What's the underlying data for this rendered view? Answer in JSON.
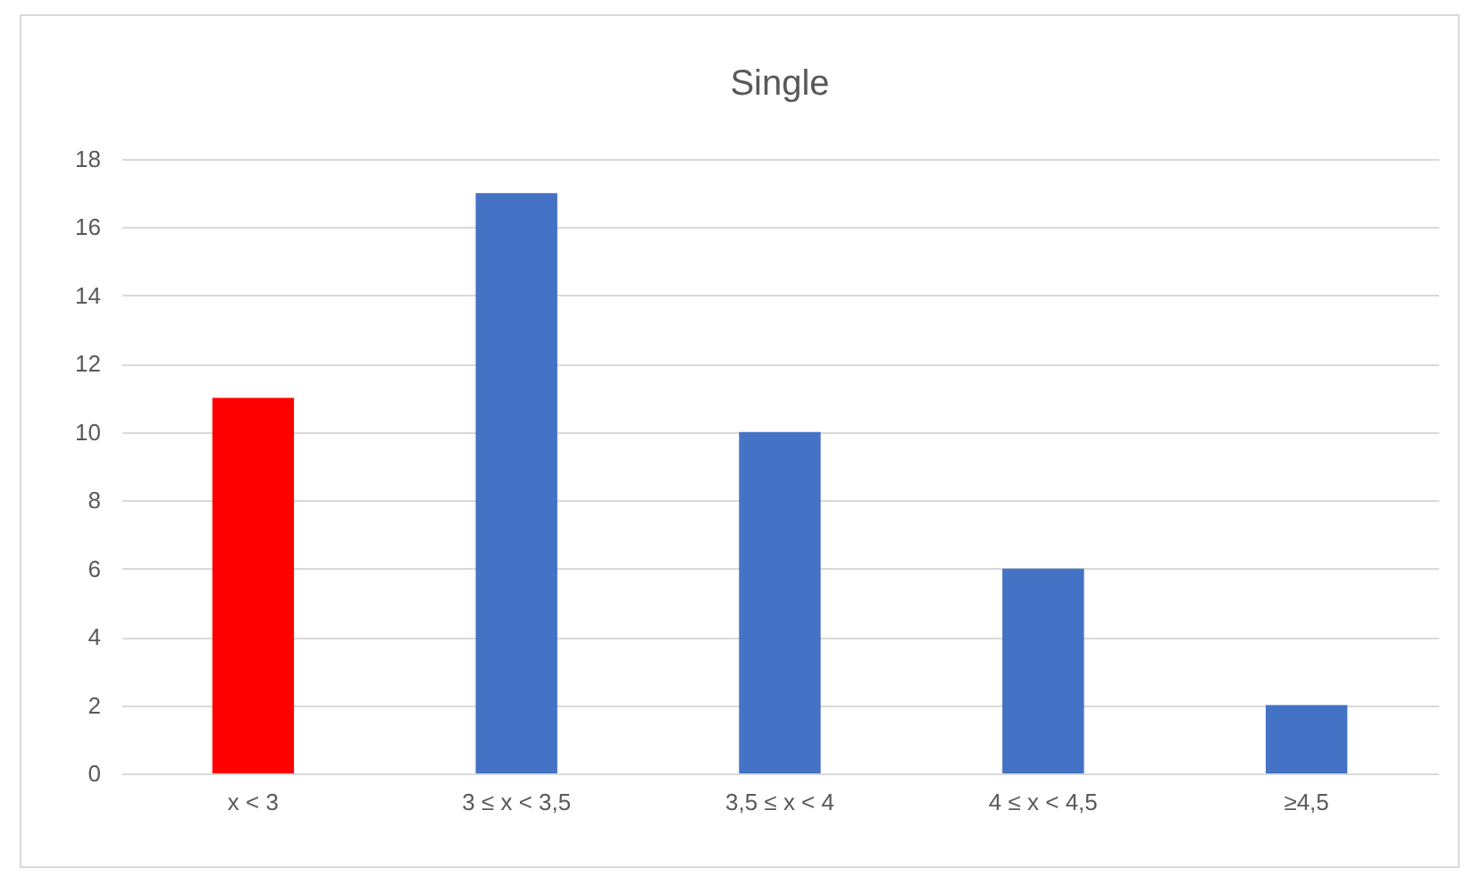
{
  "chart_data": {
    "type": "bar",
    "title": "Single",
    "categories": [
      "x < 3",
      "3 ≤ x < 3,5",
      "3,5 ≤ x < 4",
      "4 ≤ x < 4,5",
      "≥4,5"
    ],
    "values": [
      11,
      17,
      10,
      6,
      2
    ],
    "colors": [
      "#ff0000",
      "#4472c4",
      "#4472c4",
      "#4472c4",
      "#4472c4"
    ],
    "ylim": [
      0,
      18
    ],
    "yticks": [
      0,
      2,
      4,
      6,
      8,
      10,
      12,
      14,
      16,
      18
    ],
    "grid": "y"
  }
}
